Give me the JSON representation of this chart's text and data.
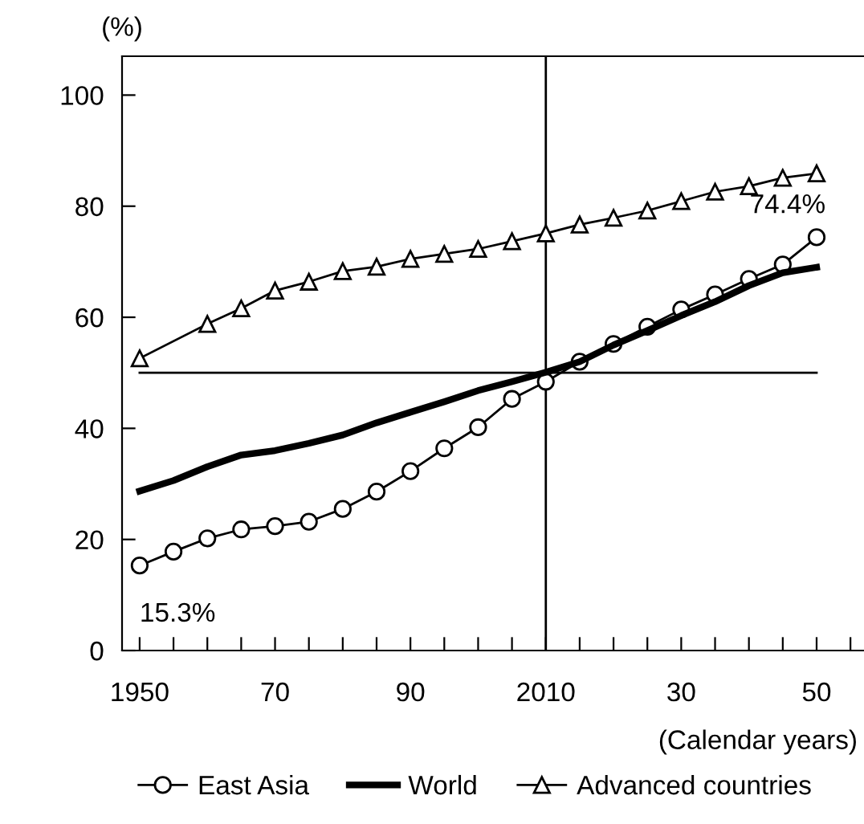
{
  "chart_data": {
    "type": "line",
    "xlabel": "(Calendar years)",
    "ylabel": "(%)",
    "xlim": [
      1947.4,
      2057
    ],
    "ylim": [
      0,
      107
    ],
    "xticks": [
      {
        "value": 1950,
        "label": "1950"
      },
      {
        "value": 1955,
        "label": null
      },
      {
        "value": 1960,
        "label": null
      },
      {
        "value": 1965,
        "label": null
      },
      {
        "value": 1970,
        "label": "70"
      },
      {
        "value": 1975,
        "label": null
      },
      {
        "value": 1980,
        "label": null
      },
      {
        "value": 1985,
        "label": null
      },
      {
        "value": 1990,
        "label": "90"
      },
      {
        "value": 1995,
        "label": null
      },
      {
        "value": 2000,
        "label": null
      },
      {
        "value": 2005,
        "label": null
      },
      {
        "value": 2010,
        "label": "2010"
      },
      {
        "value": 2015,
        "label": null
      },
      {
        "value": 2020,
        "label": null
      },
      {
        "value": 2025,
        "label": null
      },
      {
        "value": 2030,
        "label": "30"
      },
      {
        "value": 2035,
        "label": null
      },
      {
        "value": 2040,
        "label": null
      },
      {
        "value": 2045,
        "label": null
      },
      {
        "value": 2050,
        "label": "50"
      },
      {
        "value": 2055,
        "label": null
      }
    ],
    "yticks": [
      0,
      20,
      40,
      60,
      80,
      100
    ],
    "grid": false,
    "legend": "bottom",
    "line_style": "solid",
    "series": [
      {
        "name": "East Asia",
        "color": "#000000",
        "marker": "circle",
        "x": [
          1950,
          1955,
          1960,
          1965,
          1970,
          1975,
          1980,
          1985,
          1990,
          1995,
          2000,
          2005,
          2010,
          2015,
          2020,
          2025,
          2030,
          2035,
          2040,
          2045,
          2050
        ],
        "values": [
          15.3,
          17.8,
          20.2,
          21.8,
          22.4,
          23.2,
          25.5,
          28.6,
          32.3,
          36.4,
          40.2,
          45.3,
          48.4,
          52,
          55.2,
          58.3,
          61.4,
          64.1,
          66.9,
          69.5,
          74.4
        ]
      },
      {
        "name": "World",
        "color": "#000000",
        "marker": "none",
        "x": [
          1950,
          1955,
          1960,
          1965,
          1970,
          1975,
          1980,
          1985,
          1990,
          1995,
          2000,
          2005,
          2010,
          2015,
          2020,
          2025,
          2030,
          2035,
          2040,
          2045,
          2050
        ],
        "values": [
          28.7,
          30.6,
          33.1,
          35.2,
          36,
          37.3,
          38.8,
          41,
          42.9,
          44.8,
          46.8,
          48.4,
          50.1,
          52,
          55,
          57.6,
          60.3,
          62.8,
          65.7,
          68,
          69
        ]
      },
      {
        "name": "Advanced countries",
        "color": "#000000",
        "marker": "triangle",
        "x": [
          1950,
          1960,
          1965,
          1970,
          1975,
          1980,
          1985,
          1990,
          1995,
          2000,
          2005,
          2010,
          2015,
          2020,
          2025,
          2030,
          2035,
          2040,
          2045,
          2050
        ],
        "values": [
          52.6,
          58.8,
          61.6,
          64.8,
          66.4,
          68.3,
          69.1,
          70.5,
          71.4,
          72.3,
          73.7,
          75.1,
          76.7,
          77.9,
          79.2,
          80.9,
          82.6,
          83.6,
          85.1,
          85.9
        ]
      }
    ],
    "ref_lines": [
      {
        "axis": "y",
        "value": 50
      },
      {
        "axis": "x",
        "value": 2010
      }
    ],
    "annotations": [
      {
        "text": "15.3%",
        "x": 1950,
        "y": 15.3
      },
      {
        "text": "74.4%",
        "x": 2050,
        "y": 74.4
      }
    ]
  }
}
